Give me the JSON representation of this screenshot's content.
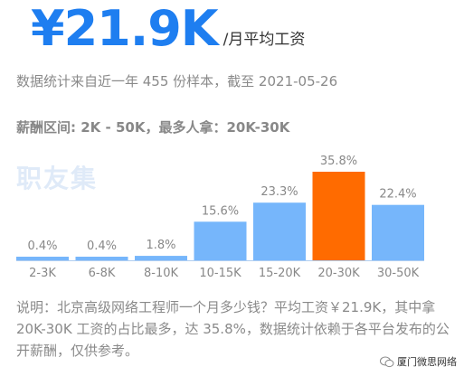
{
  "hero": {
    "value": "¥21.9K",
    "unit": "/月平均工资"
  },
  "subtitle": "数据统计来自近一年 455 份样本，截至 2021-05-26",
  "range_text": "薪酬区间: 2K - 50K，最多人拿：20K-30K",
  "watermark": "职友集",
  "note": "说明：北京高级网络工程师一个月多少钱？平均工资￥21.9K，其中拿 20K-30K 工资的占比最多，达 35.8%，数据统计依赖于各平台发布的公开薪酬，仅供参考。",
  "source": "厦门微思网络",
  "colors": {
    "primary": "#1e7ef0",
    "bar": "#76b6fb",
    "highlight": "#ff6b00",
    "baseline": "#b0cdf0"
  },
  "icon_names": {
    "source": "wechat-icon"
  },
  "chart_data": {
    "type": "bar",
    "title": "",
    "xlabel": "",
    "ylabel": "",
    "categories": [
      "2-3K",
      "6-8K",
      "8-10K",
      "10-15K",
      "15-20K",
      "20-30K",
      "30-50K"
    ],
    "values": [
      0.4,
      0.4,
      1.8,
      15.6,
      23.3,
      35.8,
      22.4
    ],
    "labels": [
      "0.4%",
      "0.4%",
      "1.8%",
      "15.6%",
      "23.3%",
      "35.8%",
      "22.4%"
    ],
    "highlight_category": "20-30K",
    "ylim": [
      0,
      35.8
    ],
    "grid": false
  }
}
